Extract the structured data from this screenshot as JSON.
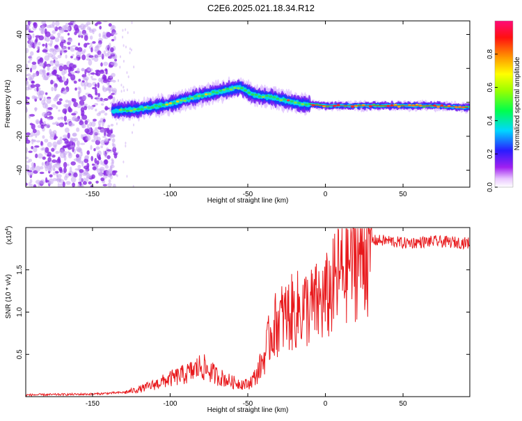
{
  "title": "C2E6.2025.021.18.34.R12",
  "colors": {
    "snr_line": "#e8191c",
    "axis": "#000000",
    "scatter_purple": "#8a2be2",
    "scatter_light": "#c9a8f2"
  },
  "chart_data": [
    {
      "type": "heatmap",
      "name": "spectrogram",
      "xlabel": "Height of straight line (km)",
      "ylabel": "Frequency (Hz)",
      "xlim": [
        -193,
        93
      ],
      "ylim": [
        -50,
        48
      ],
      "xticks": [
        -150,
        -100,
        -50,
        0,
        50
      ],
      "xtick_labels": [
        "-150",
        "-100",
        "-50",
        "0",
        "50"
      ],
      "yticks": [
        -40,
        -20,
        0,
        20,
        40
      ],
      "ytick_labels": [
        "-40",
        "-20",
        "0",
        "20",
        "40"
      ],
      "noise_region_x": [
        -193,
        -135
      ],
      "trace": {
        "x": [
          -137,
          -120,
          -100,
          -80,
          -65,
          -55,
          -45,
          -35,
          -25,
          -15,
          0,
          25,
          50,
          70,
          90
        ],
        "freq": [
          -5,
          -4,
          -1,
          4,
          7,
          9,
          4,
          3,
          1,
          -1,
          -2,
          -2,
          -2,
          -2,
          -3
        ]
      },
      "colorbar": {
        "label": "Normalized spectral amplitude",
        "range": [
          0,
          1
        ],
        "ticks": [
          0.0,
          0.2,
          0.4,
          0.6,
          0.8
        ],
        "tick_labels": [
          "0.0",
          "0.2",
          "0.4",
          "0.6",
          "0.8"
        ]
      }
    },
    {
      "type": "line",
      "name": "snr",
      "xlabel": "Height of straight line (km)",
      "ylabel": "SNR (10 * v/v)",
      "multiplier_label": "(x10",
      "multiplier_exp": "4",
      "multiplier_close": ")",
      "xlim": [
        -193,
        93
      ],
      "ylim": [
        0,
        20000
      ],
      "xticks": [
        -150,
        -100,
        -50,
        0,
        50
      ],
      "xtick_labels": [
        "-150",
        "-100",
        "-50",
        "0",
        "50"
      ],
      "yticks": [
        5000,
        10000,
        15000
      ],
      "ytick_labels": [
        "0.5",
        "1.0",
        "1.5"
      ],
      "envelope": {
        "x": [
          -193,
          -150,
          -130,
          -120,
          -110,
          -100,
          -90,
          -85,
          -80,
          -70,
          -60,
          -50,
          -45,
          -40,
          -35,
          -30,
          -25,
          -20,
          -15,
          -10,
          -5,
          0,
          5,
          10,
          15,
          20,
          25,
          30,
          40,
          50,
          60,
          70,
          93
        ],
        "y": [
          200,
          300,
          500,
          900,
          1500,
          2200,
          2800,
          3200,
          3800,
          2600,
          1800,
          1500,
          2500,
          4500,
          8000,
          9500,
          10000,
          10500,
          11000,
          11000,
          11500,
          12000,
          13500,
          15500,
          17000,
          17500,
          18200,
          18600,
          18600,
          18300,
          18400,
          18500,
          18300
        ]
      }
    }
  ]
}
